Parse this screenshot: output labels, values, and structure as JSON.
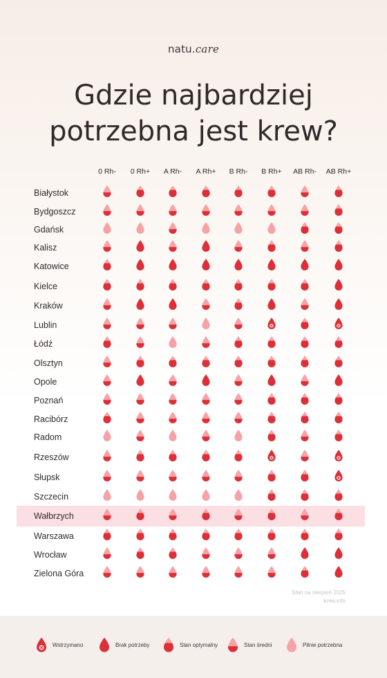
{
  "brand": {
    "prefix": "natu.",
    "suffix": "care"
  },
  "title": {
    "line1": "Gdzie najbardziej",
    "line2": "potrzebna jest krew?"
  },
  "columns": [
    "0 Rh-",
    "0 Rh+",
    "A Rh-",
    "A Rh+",
    "B Rh-",
    "B Rh+",
    "AB Rh-",
    "AB Rh+"
  ],
  "rows": [
    {
      "city": "Białystok",
      "levels": [
        "srednia",
        "optymalny",
        "optymalny",
        "optymalny",
        "optymalny",
        "optymalny",
        "srednia",
        "optymalny"
      ]
    },
    {
      "city": "Bydgoszcz",
      "levels": [
        "srednia",
        "srednia",
        "srednia",
        "srednia",
        "srednia",
        "srednia",
        "srednia",
        "optymalny"
      ]
    },
    {
      "city": "Gdańsk",
      "levels": [
        "pilnie",
        "pilnie",
        "srednia",
        "pilnie",
        "pilnie",
        "pilnie",
        "optymalny",
        "optymalny"
      ]
    },
    {
      "city": "Kalisz",
      "levels": [
        "srednia",
        "brak",
        "srednia",
        "brak",
        "srednia",
        "optymalny",
        "srednia",
        "optymalny"
      ]
    },
    {
      "city": "Katowice",
      "levels": [
        "optymalny",
        "brak",
        "brak",
        "brak",
        "brak",
        "brak",
        "brak",
        "brak"
      ]
    },
    {
      "city": "Kielce",
      "levels": [
        "optymalny",
        "optymalny",
        "optymalny",
        "optymalny",
        "optymalny",
        "optymalny",
        "optymalny",
        "brak"
      ]
    },
    {
      "city": "Kraków",
      "levels": [
        "srednia",
        "brak",
        "brak",
        "srednia",
        "optymalny",
        "brak",
        "srednia",
        "brak"
      ]
    },
    {
      "city": "Lublin",
      "levels": [
        "srednia",
        "srednia",
        "srednia",
        "pilnie",
        "srednia",
        "wstrzymano",
        "optymalny",
        "wstrzymano"
      ]
    },
    {
      "city": "Łódź",
      "levels": [
        "optymalny",
        "srednia",
        "pilnie",
        "srednia",
        "optymalny",
        "optymalny",
        "optymalny",
        "optymalny"
      ]
    },
    {
      "city": "Olsztyn",
      "levels": [
        "srednia",
        "optymalny",
        "optymalny",
        "optymalny",
        "optymalny",
        "optymalny",
        "optymalny",
        "optymalny"
      ]
    },
    {
      "city": "Opole",
      "levels": [
        "srednia",
        "brak",
        "srednia",
        "brak",
        "srednia",
        "brak",
        "srednia",
        "brak"
      ]
    },
    {
      "city": "Poznań",
      "levels": [
        "srednia",
        "srednia",
        "srednia",
        "srednia",
        "srednia",
        "optymalny",
        "optymalny",
        "optymalny"
      ]
    },
    {
      "city": "Racibórz",
      "levels": [
        "optymalny",
        "srednia",
        "srednia",
        "srednia",
        "srednia",
        "optymalny",
        "optymalny",
        "optymalny"
      ]
    },
    {
      "city": "Radom",
      "levels": [
        "pilnie",
        "srednia",
        "pilnie",
        "srednia",
        "pilnie",
        "optymalny",
        "srednia",
        "optymalny"
      ]
    },
    {
      "city": "Rzeszów",
      "levels": [
        "srednia",
        "optymalny",
        "optymalny",
        "optymalny",
        "optymalny",
        "wstrzymano",
        "srednia",
        "wstrzymano"
      ]
    },
    {
      "city": "Słupsk",
      "levels": [
        "srednia",
        "srednia",
        "srednia",
        "srednia",
        "srednia",
        "optymalny",
        "optymalny",
        "wstrzymano"
      ]
    },
    {
      "city": "Szczecin",
      "levels": [
        "pilnie",
        "pilnie",
        "pilnie",
        "pilnie",
        "pilnie",
        "optymalny",
        "optymalny",
        "optymalny"
      ]
    },
    {
      "city": "Wałbrzych",
      "levels": [
        "srednia",
        "optymalny",
        "srednia",
        "optymalny",
        "srednia",
        "optymalny",
        "srednia",
        "optymalny"
      ]
    },
    {
      "city": "Warszawa",
      "levels": [
        "optymalny",
        "optymalny",
        "optymalny",
        "optymalny",
        "optymalny",
        "optymalny",
        "optymalny",
        "optymalny"
      ]
    },
    {
      "city": "Wrocław",
      "levels": [
        "srednia",
        "optymalny",
        "optymalny",
        "srednia",
        "srednia",
        "srednia",
        "brak",
        "brak"
      ]
    },
    {
      "city": "Zielona Góra",
      "levels": [
        "srednia",
        "srednia",
        "srednia",
        "srednia",
        "srednia",
        "srednia",
        "optymalny",
        "brak"
      ]
    }
  ],
  "highlight_city": "Wałbrzych",
  "footnote": {
    "line1": "Stan na sierpień 2025",
    "line2": "krew.info"
  },
  "legend": [
    {
      "key": "wstrzymano",
      "label": "Wstrzymano"
    },
    {
      "key": "brak",
      "label": "Brak potrzeby"
    },
    {
      "key": "optymalny",
      "label": "Stan optymalny"
    },
    {
      "key": "srednia",
      "label": "Stan średni"
    },
    {
      "key": "pilnie",
      "label": "Pilnie potrzebna"
    }
  ],
  "colors": {
    "dark": "#dc2f37",
    "light": "#f5a3a7",
    "highlight": "#fbdfe2",
    "text": "#2f2a2a"
  }
}
